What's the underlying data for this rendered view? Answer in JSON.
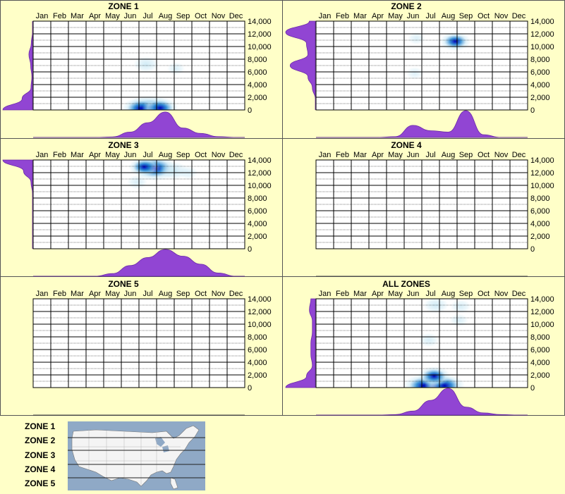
{
  "colors": {
    "background": "#ffffc8",
    "density_fill": "#9145d3",
    "heat_low": "#c9e8f5",
    "heat_mid": "#1a7fd0",
    "heat_high": "#0000b8",
    "heat_peak": "#e010c0",
    "map_water": "#8fa9c6",
    "map_land": "#f4f4f4"
  },
  "chart_data": [
    {
      "type": "heatmap",
      "title": "ZONE 1",
      "categories": [
        "Jan",
        "Feb",
        "Mar",
        "Apr",
        "May",
        "Jun",
        "Jul",
        "Aug",
        "Sep",
        "Oct",
        "Nov",
        "Dec"
      ],
      "y_ticks": [
        "14,000",
        "12,000",
        "10,000",
        "8,000",
        "6,000",
        "4,000",
        "2,000",
        "0"
      ],
      "ylim": [
        0,
        14000
      ],
      "hotspots": [
        {
          "month": 7.1,
          "elevation": 250,
          "intensity": 1.0
        },
        {
          "month": 6.6,
          "elevation": 250,
          "intensity": 0.75
        },
        {
          "month": 7.7,
          "elevation": 300,
          "intensity": 0.7
        },
        {
          "month": 6.9,
          "elevation": 7200,
          "intensity": 0.35
        },
        {
          "month": 8.6,
          "elevation": 6500,
          "intensity": 0.12
        }
      ],
      "month_density": [
        0,
        0,
        0,
        0,
        0.02,
        0.2,
        0.55,
        0.95,
        0.35,
        0.15,
        0.03,
        0
      ],
      "elevation_density": [
        1.0,
        0.35,
        0.05,
        0.02,
        0.06,
        0.12,
        0.04,
        0,
        0
      ]
    },
    {
      "type": "heatmap",
      "title": "ZONE 2",
      "categories": [
        "Jan",
        "Feb",
        "Mar",
        "Apr",
        "May",
        "Jun",
        "Jul",
        "Aug",
        "Sep",
        "Oct",
        "Nov",
        "Dec"
      ],
      "y_ticks": [
        "14,000",
        "12,000",
        "10,000",
        "8,000",
        "6,000",
        "4,000",
        "2,000",
        "0"
      ],
      "ylim": [
        0,
        14000
      ],
      "hotspots": [
        {
          "month": 8.4,
          "elevation": 10800,
          "intensity": 0.55
        },
        {
          "month": 6.2,
          "elevation": 11300,
          "intensity": 0.12
        },
        {
          "month": 6.1,
          "elevation": 5800,
          "intensity": 0.1
        }
      ],
      "month_density": [
        0,
        0,
        0,
        0,
        0.03,
        0.45,
        0.25,
        0.2,
        1.0,
        0.1,
        0,
        0
      ],
      "elevation_density": [
        0,
        0,
        0.1,
        0.25,
        0.85,
        0.25,
        0.3,
        1.0,
        0.2
      ]
    },
    {
      "type": "heatmap",
      "title": "ZONE 3",
      "categories": [
        "Jan",
        "Feb",
        "Mar",
        "Apr",
        "May",
        "Jun",
        "Jul",
        "Aug",
        "Sep",
        "Oct",
        "Nov",
        "Dec"
      ],
      "y_ticks": [
        "14,000",
        "12,000",
        "10,000",
        "8,000",
        "6,000",
        "4,000",
        "2,000",
        "0"
      ],
      "ylim": [
        0,
        14000
      ],
      "hotspots": [
        {
          "month": 7.4,
          "elevation": 12700,
          "intensity": 1.0
        },
        {
          "month": 6.8,
          "elevation": 12900,
          "intensity": 0.55
        },
        {
          "month": 8.5,
          "elevation": 12300,
          "intensity": 0.45
        },
        {
          "month": 6.4,
          "elevation": 10500,
          "intensity": 0.2
        },
        {
          "month": 9.3,
          "elevation": 12000,
          "intensity": 0.15
        }
      ],
      "month_density": [
        0,
        0,
        0,
        0,
        0.1,
        0.4,
        0.7,
        1.0,
        0.75,
        0.45,
        0.12,
        0
      ],
      "elevation_density": [
        0,
        0,
        0,
        0,
        0,
        0,
        0.05,
        0.3,
        1.0
      ]
    },
    {
      "type": "heatmap",
      "title": "ZONE 4",
      "categories": [
        "Jan",
        "Feb",
        "Mar",
        "Apr",
        "May",
        "Jun",
        "Jul",
        "Aug",
        "Sep",
        "Oct",
        "Nov",
        "Dec"
      ],
      "y_ticks": [
        "14,000",
        "12,000",
        "10,000",
        "8,000",
        "6,000",
        "4,000",
        "2,000",
        "0"
      ],
      "ylim": [
        0,
        14000
      ],
      "hotspots": [],
      "month_density": [],
      "elevation_density": []
    },
    {
      "type": "heatmap",
      "title": "ZONE 5",
      "categories": [
        "Jan",
        "Feb",
        "Mar",
        "Apr",
        "May",
        "Jun",
        "Jul",
        "Aug",
        "Sep",
        "Oct",
        "Nov",
        "Dec"
      ],
      "y_ticks": [
        "14,000",
        "12,000",
        "10,000",
        "8,000",
        "6,000",
        "4,000",
        "2,000",
        "0"
      ],
      "ylim": [
        0,
        14000
      ],
      "hotspots": [],
      "month_density": [],
      "elevation_density": []
    },
    {
      "type": "heatmap",
      "title": "ALL ZONES",
      "categories": [
        "Jan",
        "Feb",
        "Mar",
        "Apr",
        "May",
        "Jun",
        "Jul",
        "Aug",
        "Sep",
        "Oct",
        "Nov",
        "Dec"
      ],
      "y_ticks": [
        "14,000",
        "12,000",
        "10,000",
        "8,000",
        "6,000",
        "4,000",
        "2,000",
        "0"
      ],
      "ylim": [
        0,
        14000
      ],
      "hotspots": [
        {
          "month": 7.2,
          "elevation": 150,
          "intensity": 1.0
        },
        {
          "month": 6.6,
          "elevation": 300,
          "intensity": 0.85
        },
        {
          "month": 7.8,
          "elevation": 300,
          "intensity": 0.85
        },
        {
          "month": 7.2,
          "elevation": 1800,
          "intensity": 0.6
        },
        {
          "month": 7.3,
          "elevation": 13000,
          "intensity": 0.35
        },
        {
          "month": 8.7,
          "elevation": 12800,
          "intensity": 0.2
        },
        {
          "month": 6.9,
          "elevation": 7500,
          "intensity": 0.2
        },
        {
          "month": 8.6,
          "elevation": 10600,
          "intensity": 0.15
        }
      ],
      "month_density": [
        0,
        0,
        0,
        0,
        0.02,
        0.15,
        0.55,
        1.0,
        0.3,
        0.08,
        0.02,
        0
      ],
      "elevation_density": [
        1.0,
        0.3,
        0.1,
        0.15,
        0.15,
        0.1,
        0.1,
        0.2,
        0.15
      ]
    }
  ],
  "legend": {
    "zones": [
      "ZONE 1",
      "ZONE 2",
      "ZONE 3",
      "ZONE 4",
      "ZONE 5"
    ]
  }
}
